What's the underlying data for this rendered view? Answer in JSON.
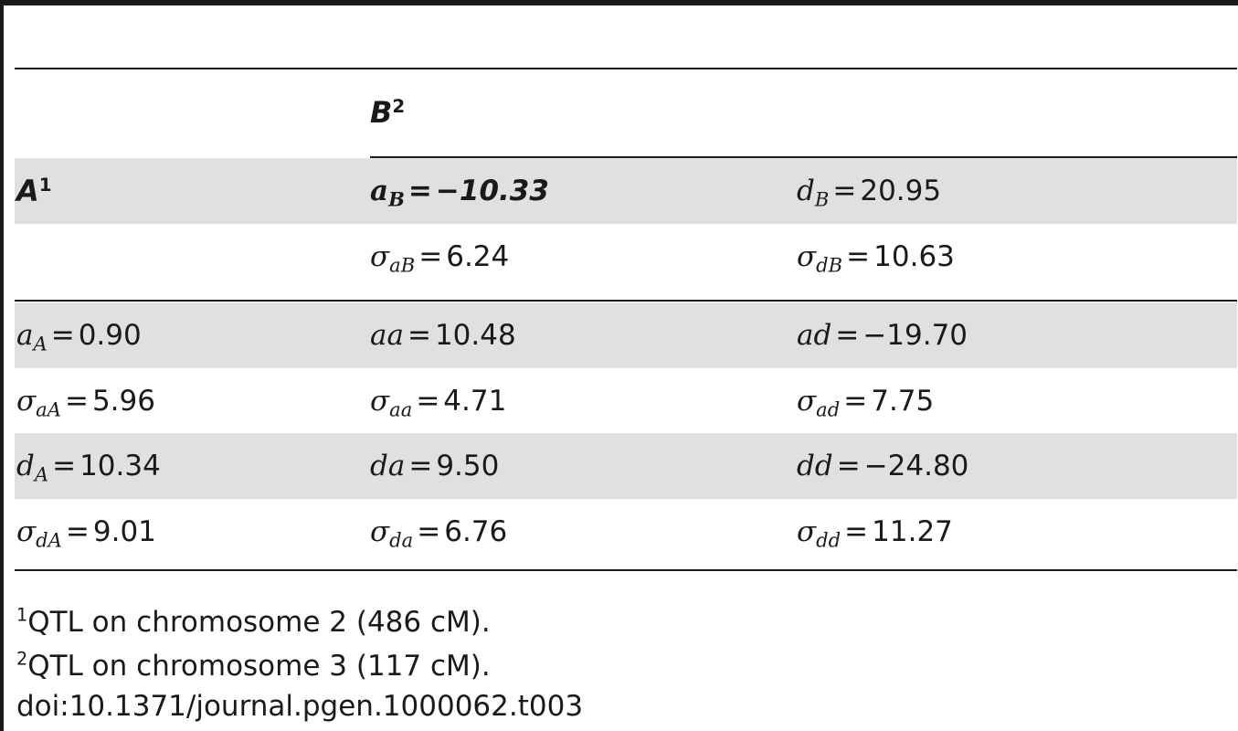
{
  "header": {
    "row_label": "A",
    "row_label_sup": "1",
    "col_label": "B",
    "col_label_sup": "2"
  },
  "rows": [
    {
      "c0": null,
      "c1": {
        "sym": "a",
        "sub": "B",
        "eq": "=",
        "val": "−10.33",
        "bold": true
      },
      "c2": {
        "sym": "d",
        "sub": "B",
        "eq": "=",
        "val": "20.95"
      }
    },
    {
      "c0": null,
      "c1": {
        "sym": "σ",
        "sub": "aB",
        "eq": "=",
        "val": "6.24"
      },
      "c2": {
        "sym": "σ",
        "sub": "dB",
        "eq": "=",
        "val": "10.63"
      }
    },
    {
      "c0": {
        "sym": "a",
        "sub": "A",
        "eq": "=",
        "val": "0.90"
      },
      "c1": {
        "sym": "aa",
        "sub": "",
        "eq": "=",
        "val": "10.48"
      },
      "c2": {
        "sym": "ad",
        "sub": "",
        "eq": "=",
        "val": "−19.70"
      }
    },
    {
      "c0": {
        "sym": "σ",
        "sub": "aA",
        "eq": "=",
        "val": "5.96"
      },
      "c1": {
        "sym": "σ",
        "sub": "aa",
        "eq": "=",
        "val": "4.71"
      },
      "c2": {
        "sym": "σ",
        "sub": "ad",
        "eq": "=",
        "val": "7.75"
      }
    },
    {
      "c0": {
        "sym": "d",
        "sub": "A",
        "eq": "=",
        "val": "10.34"
      },
      "c1": {
        "sym": "da",
        "sub": "",
        "eq": "=",
        "val": "9.50"
      },
      "c2": {
        "sym": "dd",
        "sub": "",
        "eq": "=",
        "val": "−24.80"
      }
    },
    {
      "c0": {
        "sym": "σ",
        "sub": "dA",
        "eq": "=",
        "val": "9.01"
      },
      "c1": {
        "sym": "σ",
        "sub": "da",
        "eq": "=",
        "val": "6.76"
      },
      "c2": {
        "sym": "σ",
        "sub": "dd",
        "eq": "=",
        "val": "11.27"
      }
    }
  ],
  "footnotes": [
    {
      "mark": "1",
      "text": "QTL on chromosome 2 (486 cM)."
    },
    {
      "mark": "2",
      "text": "QTL on chromosome 3 (117 cM)."
    }
  ],
  "doi": "doi:10.1371/journal.pgen.1000062.t003"
}
